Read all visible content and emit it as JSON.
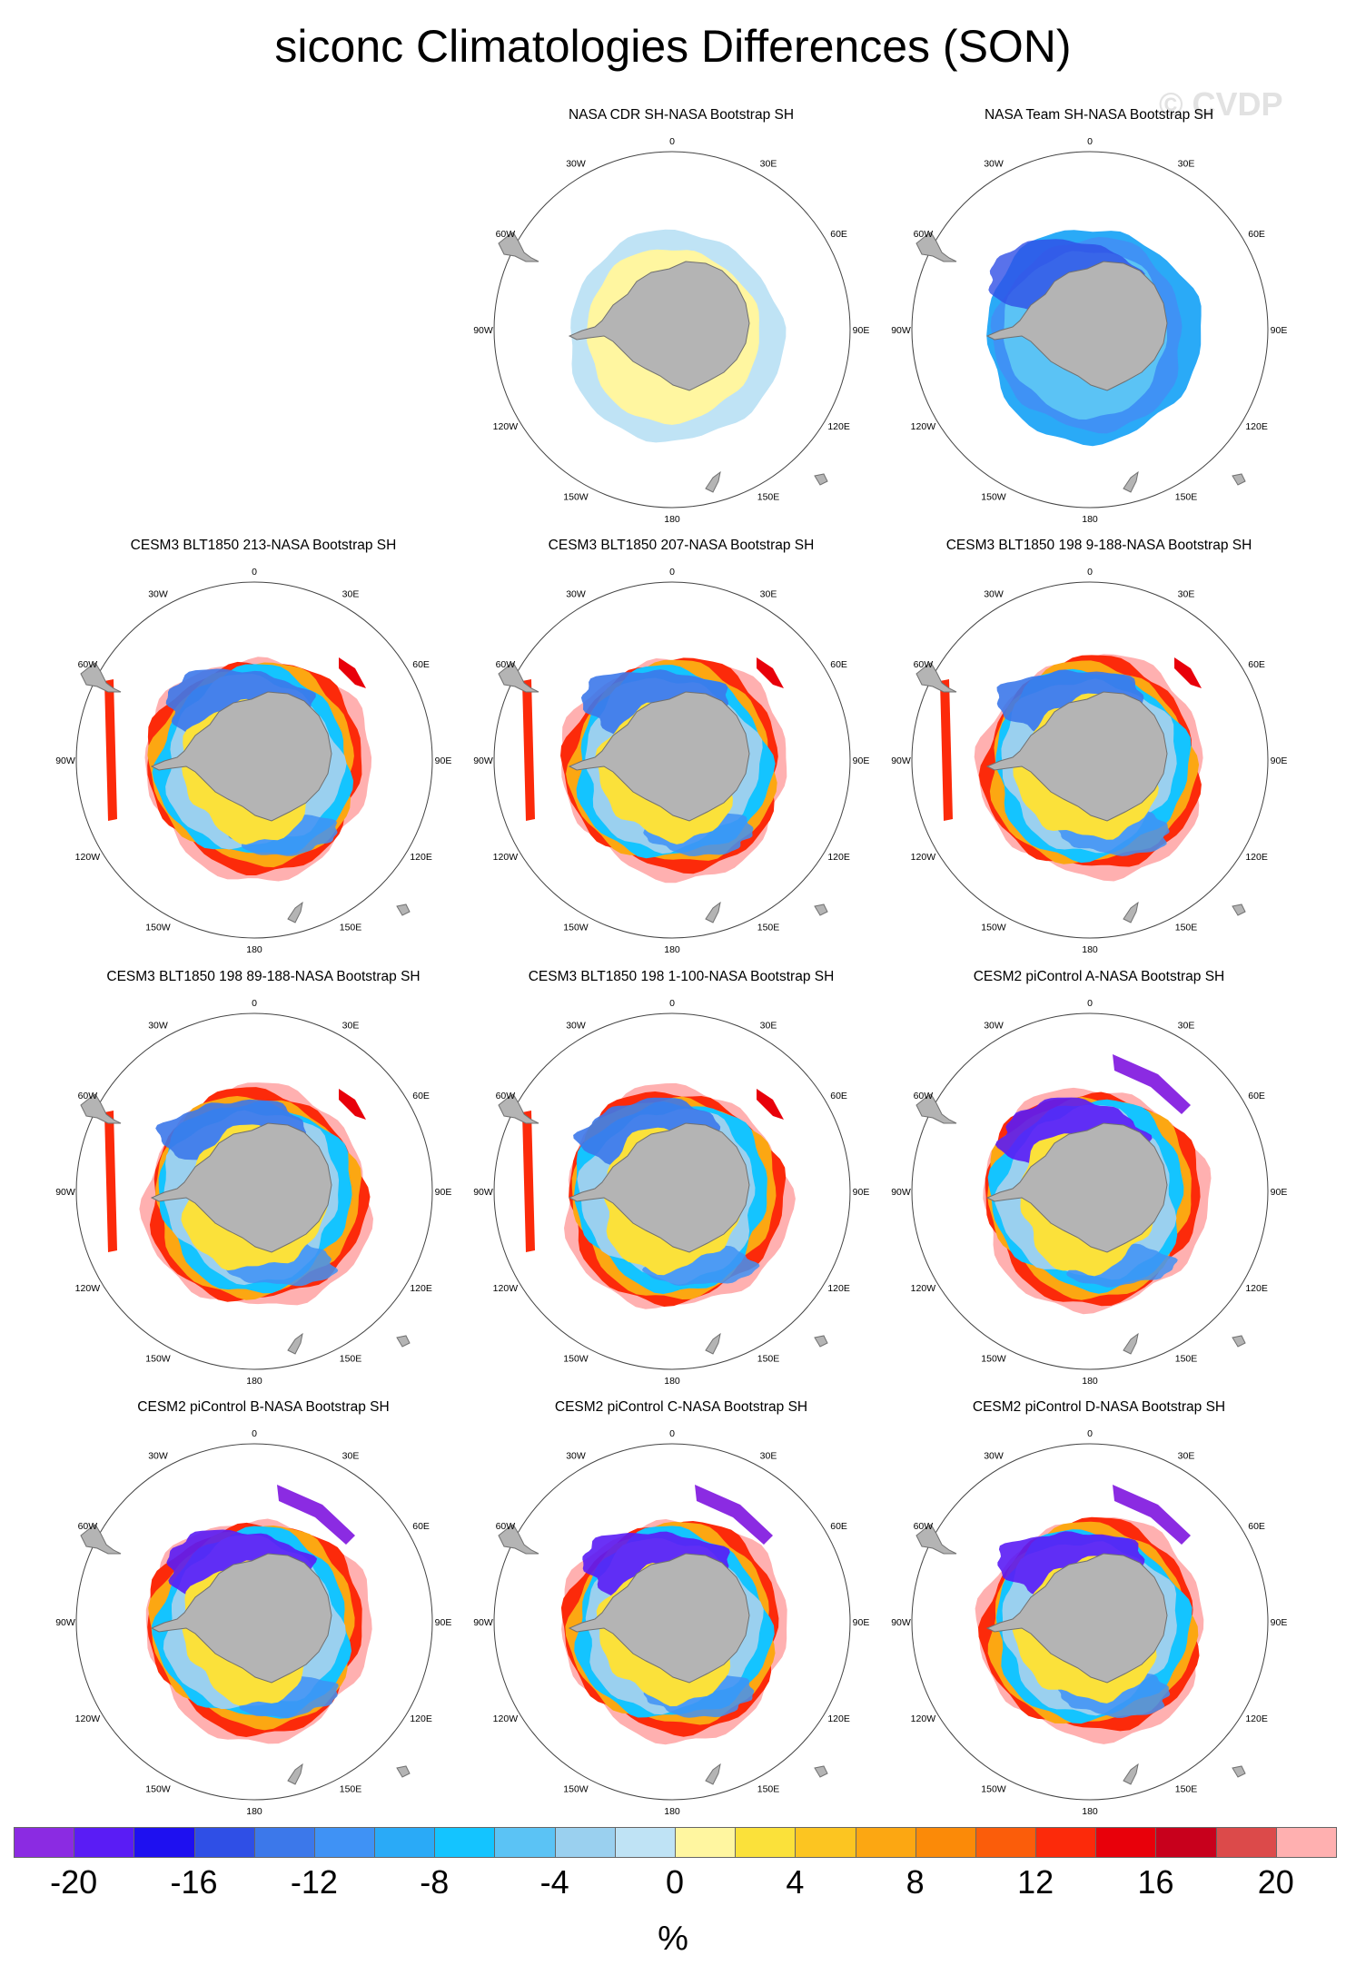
{
  "figure": {
    "title": "siconc Climatologies Differences (SON)",
    "watermark": "© CVDP"
  },
  "panels": [
    {
      "title": "NASA CDR SH-NASA Bootstrap SH",
      "style": "cdr"
    },
    {
      "title": "NASA Team SH-NASA Bootstrap SH",
      "style": "team"
    },
    {
      "title": "CESM3 BLT1850 213-NASA Bootstrap SH",
      "style": "cesm3"
    },
    {
      "title": "CESM3 BLT1850 207-NASA Bootstrap SH",
      "style": "cesm3"
    },
    {
      "title": "CESM3 BLT1850 198 9-188-NASA Bootstrap SH",
      "style": "cesm3"
    },
    {
      "title": "CESM3 BLT1850 198 89-188-NASA Bootstrap SH",
      "style": "cesm3"
    },
    {
      "title": "CESM3 BLT1850 198 1-100-NASA Bootstrap SH",
      "style": "cesm3"
    },
    {
      "title": "CESM2 piControl A-NASA Bootstrap SH",
      "style": "cesm2"
    },
    {
      "title": "CESM2 piControl B-NASA Bootstrap SH",
      "style": "cesm2"
    },
    {
      "title": "CESM2 piControl C-NASA Bootstrap SH",
      "style": "cesm2"
    },
    {
      "title": "CESM2 piControl D-NASA Bootstrap SH",
      "style": "cesm2"
    }
  ],
  "longitude_labels": [
    "0",
    "30E",
    "60E",
    "90E",
    "120E",
    "150E",
    "180",
    "150W",
    "120W",
    "90W",
    "60W",
    "30W"
  ],
  "colorbar": {
    "colors": [
      "#8b2be2",
      "#5a1cf5",
      "#1e10f0",
      "#2f4fe6",
      "#3c78ea",
      "#3f92f5",
      "#2aaaf7",
      "#14c4ff",
      "#5bc3f5",
      "#9ad0ef",
      "#bfe3f5",
      "#fff6a0",
      "#fbe13a",
      "#fcc521",
      "#fca712",
      "#fb8a08",
      "#fb5d0a",
      "#fc2a0a",
      "#e8000a",
      "#c8001c",
      "#dc4a4a",
      "#ffb0b0"
    ],
    "tick_labels": [
      "-20",
      "-16",
      "-12",
      "-8",
      "-4",
      "0",
      "4",
      "8",
      "12",
      "16",
      "20"
    ],
    "unit": "%"
  }
}
